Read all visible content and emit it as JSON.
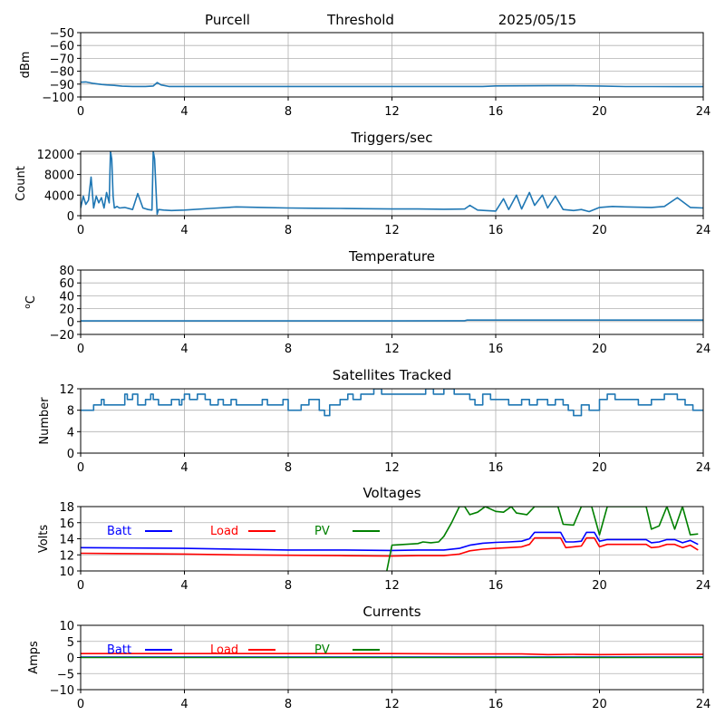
{
  "header": {
    "site": "Purcell",
    "mode": "Threshold",
    "date": "2025/05/15"
  },
  "chart_data": [
    {
      "type": "line",
      "title": "",
      "xlabel": "",
      "ylabel": "dBm",
      "xlim": [
        0,
        24
      ],
      "ylim": [
        -100,
        -50
      ],
      "xticks": [
        0,
        4,
        8,
        12,
        16,
        20,
        24
      ],
      "yticks": [
        -100,
        -90,
        -80,
        -70,
        -60,
        -50
      ],
      "ytick_labels": [
        "−100",
        "−90",
        "−80",
        "−70",
        "−60",
        "−50"
      ],
      "grid": true,
      "series": [
        {
          "color": "#1f77b4",
          "x": [
            0,
            0.2,
            0.5,
            0.8,
            1.0,
            1.3,
            1.6,
            2.0,
            2.5,
            2.8,
            2.95,
            3.1,
            3.4,
            4,
            6,
            8,
            10,
            12,
            14,
            15.5,
            16,
            18,
            19,
            20,
            21,
            22,
            23,
            24
          ],
          "y": [
            -88.5,
            -88.3,
            -89.5,
            -90.3,
            -90.6,
            -91.0,
            -91.6,
            -91.8,
            -91.8,
            -91.5,
            -88.8,
            -90.6,
            -91.8,
            -91.8,
            -91.8,
            -91.8,
            -91.8,
            -91.8,
            -91.8,
            -91.8,
            -91.4,
            -91.3,
            -91.3,
            -91.5,
            -91.9,
            -91.9,
            -92.0,
            -92.0
          ]
        }
      ]
    },
    {
      "type": "line",
      "title": "Triggers/sec",
      "xlabel": "",
      "ylabel": "Count",
      "xlim": [
        0,
        24
      ],
      "ylim": [
        0,
        12500
      ],
      "xticks": [
        0,
        4,
        8,
        12,
        16,
        20,
        24
      ],
      "yticks": [
        0,
        4000,
        8000,
        12000
      ],
      "ytick_labels": [
        "0",
        "4000",
        "8000",
        "12000"
      ],
      "grid": true,
      "series": [
        {
          "color": "#1f77b4",
          "x": [
            0,
            0.1,
            0.2,
            0.3,
            0.4,
            0.5,
            0.6,
            0.7,
            0.8,
            0.9,
            1.0,
            1.1,
            1.15,
            1.2,
            1.25,
            1.3,
            1.4,
            1.5,
            1.7,
            2.0,
            2.2,
            2.4,
            2.6,
            2.75,
            2.8,
            2.85,
            2.95,
            3.0,
            3.2,
            3.5,
            4,
            5,
            6,
            7,
            8,
            9,
            10,
            11,
            12,
            13,
            14,
            14.8,
            15,
            15.3,
            15.6,
            16,
            16.3,
            16.5,
            16.8,
            17.0,
            17.3,
            17.5,
            17.8,
            18.0,
            18.3,
            18.6,
            19.0,
            19.3,
            19.6,
            20.0,
            20.5,
            21,
            22,
            22.5,
            23,
            23.5,
            24
          ],
          "y": [
            1500,
            3800,
            2200,
            3000,
            7500,
            1500,
            3800,
            2500,
            3500,
            1500,
            4500,
            2500,
            12500,
            11000,
            3800,
            1500,
            1800,
            1500,
            1600,
            1200,
            4300,
            1500,
            1200,
            1100,
            12500,
            11000,
            300,
            1200,
            1100,
            1000,
            1100,
            1400,
            1700,
            1600,
            1500,
            1450,
            1400,
            1350,
            1300,
            1300,
            1250,
            1300,
            2000,
            1100,
            1000,
            900,
            3300,
            1200,
            4000,
            1300,
            4500,
            2000,
            4000,
            1500,
            3800,
            1200,
            1000,
            1200,
            800,
            1600,
            1800,
            1700,
            1600,
            1800,
            3500,
            1600,
            1500
          ]
        }
      ]
    },
    {
      "type": "line",
      "title": "Temperature",
      "xlabel": "",
      "ylabel": "°C",
      "ylabel_parts": {
        "sup": "o",
        "main": "C"
      },
      "xlim": [
        0,
        24
      ],
      "ylim": [
        -20,
        80
      ],
      "xticks": [
        0,
        4,
        8,
        12,
        16,
        20,
        24
      ],
      "yticks": [
        -20,
        0,
        20,
        40,
        60,
        80
      ],
      "ytick_labels": [
        "−20",
        "0",
        "20",
        "40",
        "60",
        "80"
      ],
      "grid": true,
      "series": [
        {
          "color": "#1f77b4",
          "x": [
            0,
            4,
            8,
            12,
            14.8,
            14.9,
            20,
            24
          ],
          "y": [
            1.0,
            1.0,
            1.0,
            1.0,
            1.2,
            2.3,
            2.3,
            2.3
          ]
        }
      ]
    },
    {
      "type": "line",
      "title": "Satellites Tracked",
      "xlabel": "",
      "ylabel": "Number",
      "xlim": [
        0,
        24
      ],
      "ylim": [
        0,
        12
      ],
      "xticks": [
        0,
        4,
        8,
        12,
        16,
        20,
        24
      ],
      "yticks": [
        0,
        4,
        8,
        12
      ],
      "ytick_labels": [
        "0",
        "4",
        "8",
        "12"
      ],
      "grid": true,
      "step": true,
      "series": [
        {
          "color": "#1f77b4",
          "x": [
            0,
            0.5,
            0.8,
            0.9,
            1.5,
            1.7,
            1.8,
            2.0,
            2.2,
            2.5,
            2.7,
            2.8,
            3.0,
            3.5,
            3.8,
            3.9,
            4.0,
            4.2,
            4.5,
            4.8,
            5.0,
            5.3,
            5.5,
            5.8,
            6.0,
            6.5,
            7.0,
            7.2,
            7.5,
            7.8,
            8.0,
            8.5,
            8.8,
            9.2,
            9.4,
            9.6,
            10.0,
            10.3,
            10.5,
            10.8,
            11.0,
            11.3,
            11.6,
            12.0,
            12.5,
            13.0,
            13.3,
            13.6,
            14.0,
            14.4,
            14.8,
            15.0,
            15.2,
            15.5,
            15.8,
            16.0,
            16.5,
            17.0,
            17.3,
            17.6,
            18.0,
            18.3,
            18.6,
            18.8,
            19.0,
            19.3,
            19.6,
            20.0,
            20.3,
            20.6,
            21.0,
            21.5,
            22.0,
            22.5,
            23.0,
            23.3,
            23.6,
            24
          ],
          "y": [
            8,
            9,
            10,
            9,
            9,
            11,
            10,
            11,
            9,
            10,
            11,
            10,
            9,
            10,
            9,
            10,
            11,
            10,
            11,
            10,
            9,
            10,
            9,
            10,
            9,
            9,
            10,
            9,
            9,
            10,
            8,
            9,
            10,
            8,
            7,
            9,
            10,
            11,
            10,
            11,
            11,
            12,
            11,
            11,
            11,
            11,
            12,
            11,
            12,
            11,
            11,
            10,
            9,
            11,
            10,
            10,
            9,
            10,
            9,
            10,
            9,
            10,
            9,
            8,
            7,
            9,
            8,
            10,
            11,
            10,
            10,
            9,
            10,
            11,
            10,
            9,
            8,
            8
          ]
        }
      ]
    },
    {
      "type": "line",
      "title": "Voltages",
      "xlabel": "",
      "ylabel": "Volts",
      "xlim": [
        0,
        24
      ],
      "ylim": [
        10,
        18
      ],
      "xticks": [
        0,
        4,
        8,
        12,
        16,
        20,
        24
      ],
      "yticks": [
        10,
        12,
        14,
        16,
        18
      ],
      "ytick_labels": [
        "10",
        "12",
        "14",
        "16",
        "18"
      ],
      "grid": true,
      "legend": "top-left",
      "series": [
        {
          "name": "Batt",
          "color": "#0000ff",
          "x": [
            0,
            2,
            4,
            6,
            8,
            10,
            12,
            13,
            14,
            14.6,
            15,
            15.5,
            16,
            16.5,
            17,
            17.3,
            17.5,
            18,
            18.5,
            18.7,
            19.0,
            19.3,
            19.5,
            19.8,
            20.0,
            20.3,
            20.5,
            21,
            21.5,
            21.8,
            22.0,
            22.3,
            22.6,
            22.9,
            23.2,
            23.5,
            23.8
          ],
          "y": [
            12.9,
            12.85,
            12.8,
            12.7,
            12.6,
            12.6,
            12.55,
            12.6,
            12.6,
            12.8,
            13.2,
            13.45,
            13.55,
            13.6,
            13.7,
            14.0,
            14.8,
            14.8,
            14.8,
            13.6,
            13.6,
            13.7,
            14.8,
            14.8,
            13.7,
            13.9,
            13.9,
            13.9,
            13.9,
            13.9,
            13.5,
            13.6,
            13.9,
            13.9,
            13.5,
            13.8,
            13.3
          ]
        },
        {
          "name": "Load",
          "color": "#ff0000",
          "x": [
            0,
            2,
            4,
            6,
            8,
            10,
            12,
            13,
            14,
            14.6,
            15,
            15.5,
            16,
            16.5,
            17,
            17.3,
            17.5,
            18,
            18.5,
            18.7,
            19.0,
            19.3,
            19.5,
            19.8,
            20.0,
            20.3,
            20.5,
            21,
            21.5,
            21.8,
            22.0,
            22.3,
            22.6,
            22.9,
            23.2,
            23.5,
            23.8
          ],
          "y": [
            12.2,
            12.15,
            12.1,
            12.0,
            11.95,
            11.9,
            11.85,
            11.9,
            11.9,
            12.1,
            12.5,
            12.7,
            12.8,
            12.9,
            13.0,
            13.3,
            14.1,
            14.1,
            14.1,
            12.9,
            13.0,
            13.1,
            14.1,
            14.1,
            13.0,
            13.3,
            13.3,
            13.3,
            13.3,
            13.3,
            12.9,
            13.0,
            13.3,
            13.3,
            12.9,
            13.2,
            12.6
          ]
        },
        {
          "name": "PV",
          "color": "#008000",
          "x": [
            11.8,
            12.0,
            12.5,
            13.0,
            13.2,
            13.5,
            13.8,
            14.0,
            14.3,
            14.6,
            14.8,
            15.0,
            15.3,
            15.6,
            16.0,
            16.3,
            16.6,
            16.8,
            17.2,
            17.5,
            18.0,
            18.4,
            18.6,
            19.0,
            19.3,
            19.7,
            20.0,
            20.3,
            20.6,
            21.0,
            21.5,
            21.8,
            22.0,
            22.3,
            22.6,
            22.9,
            23.2,
            23.5,
            23.8
          ],
          "y": [
            10.0,
            13.2,
            13.3,
            13.4,
            13.6,
            13.5,
            13.6,
            14.3,
            16.0,
            18.0,
            18.0,
            17.0,
            17.3,
            18.0,
            17.4,
            17.3,
            18.0,
            17.2,
            17.0,
            18.0,
            18.0,
            18.0,
            15.8,
            15.7,
            18.0,
            18.0,
            14.5,
            18.0,
            18.0,
            18.0,
            18.0,
            18.0,
            15.2,
            15.6,
            18.0,
            15.2,
            18.0,
            14.5,
            14.6
          ]
        }
      ]
    },
    {
      "type": "line",
      "title": "Currents",
      "xlabel": "",
      "ylabel": "Amps",
      "xlim": [
        0,
        24
      ],
      "ylim": [
        -10,
        10
      ],
      "xticks": [
        0,
        4,
        8,
        12,
        16,
        20,
        24
      ],
      "yticks": [
        -10,
        -5,
        0,
        5,
        10
      ],
      "ytick_labels": [
        "−10",
        "−5",
        "0",
        "5",
        "10"
      ],
      "grid": true,
      "legend": "top-left",
      "series": [
        {
          "name": "Batt",
          "color": "#0000ff",
          "x": [
            0,
            6,
            12,
            18,
            24
          ],
          "y": [
            0.1,
            0.1,
            0.1,
            0.1,
            0.1
          ]
        },
        {
          "name": "Load",
          "color": "#ff0000",
          "x": [
            0,
            4,
            8,
            12,
            15,
            17,
            18,
            19,
            20,
            22,
            24
          ],
          "y": [
            1.2,
            1.2,
            1.2,
            1.2,
            1.1,
            1.1,
            0.9,
            1.0,
            0.9,
            1.0,
            1.0
          ]
        },
        {
          "name": "PV",
          "color": "#008000",
          "x": [
            0,
            6,
            12,
            18,
            24
          ],
          "y": [
            0.0,
            0.0,
            0.0,
            0.0,
            0.0
          ]
        }
      ]
    }
  ]
}
